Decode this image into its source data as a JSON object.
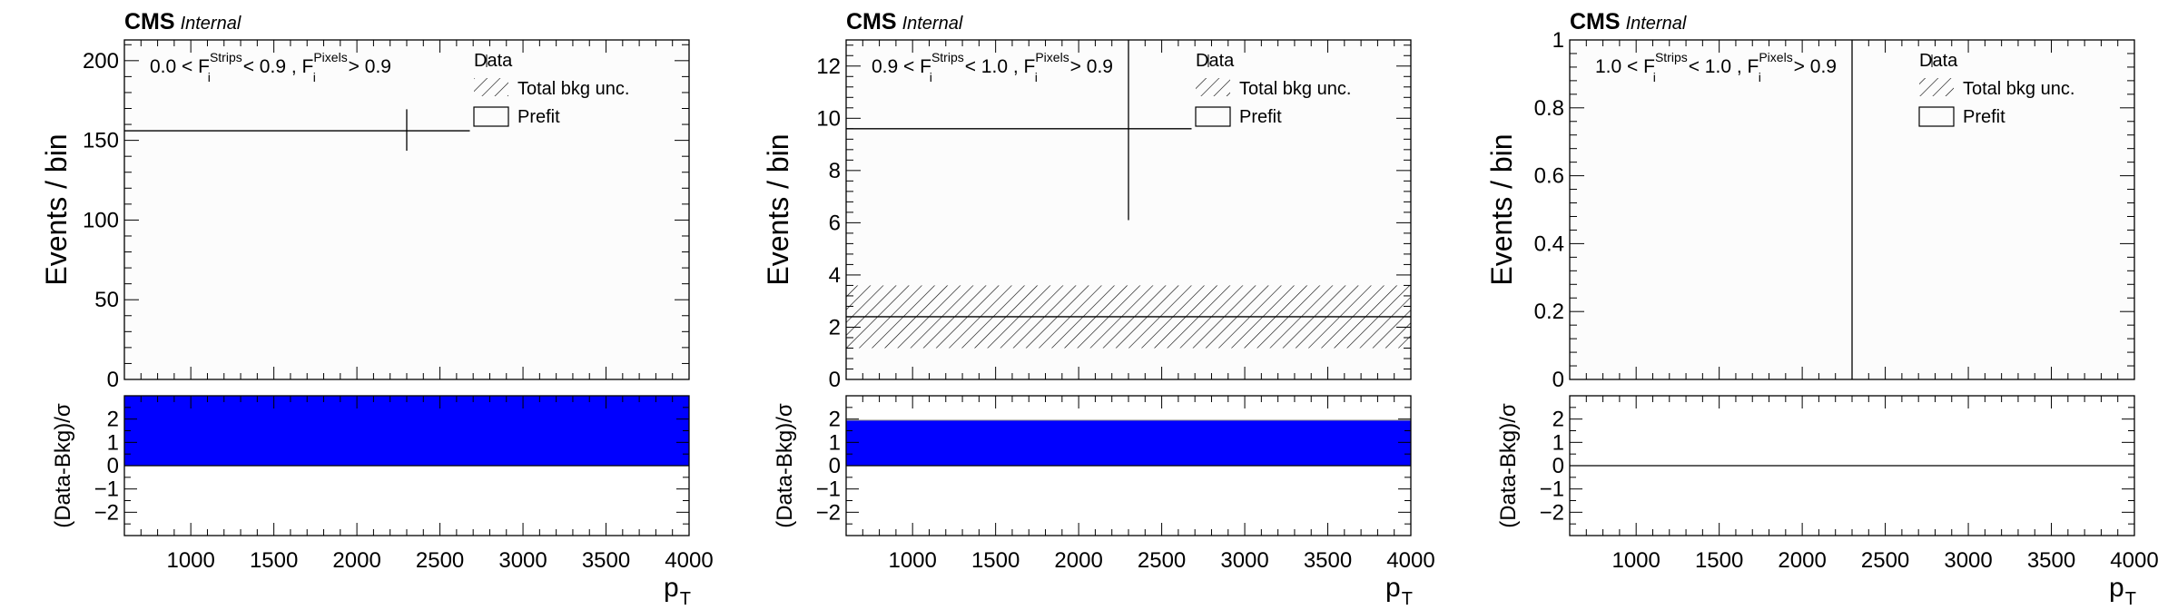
{
  "chart_data": [
    {
      "type": "histogram",
      "experiment": "CMS",
      "experiment_status": "Internal",
      "category_label": {
        "prefix": "0.0 < F",
        "sup1": "Strips",
        "mid": " < 0.9 , F",
        "sup2": "Pixels",
        "suffix": " > 0.9",
        "sub": "i"
      },
      "ylabel": "Events / bin",
      "ratio_ylabel": "(Data-Bkg)/σ",
      "xlabel": "p",
      "xlabel_sub": "T",
      "xlim": [
        600,
        4000
      ],
      "ylim": [
        0,
        213
      ],
      "y_ticks": [
        0,
        50,
        100,
        150,
        200
      ],
      "y_tick_labels": [
        "0",
        "50",
        "100",
        "150",
        "200"
      ],
      "x_ticks": [
        1000,
        1500,
        2000,
        2500,
        3000,
        3500,
        4000
      ],
      "x_tick_labels": [
        "1000",
        "1500",
        "2000",
        "2500",
        "3000",
        "3500",
        "4000"
      ],
      "ratio_ylim": [
        -3,
        3
      ],
      "ratio_ticks": [
        -2,
        -1,
        0,
        1,
        2
      ],
      "ratio_tick_labels": [
        "−2",
        "−1",
        "0",
        "1",
        "2"
      ],
      "legend": {
        "data": "Data",
        "unc": "Total bkg unc.",
        "prefit": "Prefit"
      },
      "data_points": [
        {
          "x": 2300,
          "xlow": 600,
          "xhigh": 2680,
          "y": 156,
          "yerr_low": 12.5,
          "yerr_high": 13.5
        }
      ],
      "background": {
        "value": 0,
        "unc_low": 0,
        "unc_high": 0
      },
      "pull": {
        "value": 3.0,
        "clipped": true
      }
    },
    {
      "type": "histogram",
      "experiment": "CMS",
      "experiment_status": "Internal",
      "category_label": {
        "prefix": "0.9 < F",
        "sup1": "Strips",
        "mid": " < 1.0 , F",
        "sup2": "Pixels",
        "suffix": " > 0.9",
        "sub": "i"
      },
      "ylabel": "Events / bin",
      "ratio_ylabel": "(Data-Bkg)/σ",
      "xlabel": "p",
      "xlabel_sub": "T",
      "xlim": [
        600,
        4000
      ],
      "ylim": [
        0,
        13
      ],
      "y_ticks": [
        0,
        2,
        4,
        6,
        8,
        10,
        12
      ],
      "y_tick_labels": [
        "0",
        "2",
        "4",
        "6",
        "8",
        "10",
        "12"
      ],
      "x_ticks": [
        1000,
        1500,
        2000,
        2500,
        3000,
        3500,
        4000
      ],
      "x_tick_labels": [
        "1000",
        "1500",
        "2000",
        "2500",
        "3000",
        "3500",
        "4000"
      ],
      "ratio_ylim": [
        -3,
        3
      ],
      "ratio_ticks": [
        -2,
        -1,
        0,
        1,
        2
      ],
      "ratio_tick_labels": [
        "−2",
        "−1",
        "0",
        "1",
        "2"
      ],
      "legend": {
        "data": "Data",
        "unc": "Total bkg unc.",
        "prefit": "Prefit"
      },
      "data_points": [
        {
          "x": 2300,
          "xlow": 600,
          "xhigh": 2680,
          "y": 9.6,
          "yerr_low": 3.5,
          "yerr_high": 4.0
        }
      ],
      "background": {
        "value": 2.4,
        "unc_low": 1.2,
        "unc_high": 3.6
      },
      "pull": {
        "value": 1.95,
        "clipped": false
      }
    },
    {
      "type": "histogram",
      "experiment": "CMS",
      "experiment_status": "Internal",
      "category_label": {
        "prefix": "1.0 < F",
        "sup1": "Strips",
        "mid": " < 1.0 , F",
        "sup2": "Pixels",
        "suffix": " > 0.9",
        "sub": "i"
      },
      "ylabel": "Events / bin",
      "ratio_ylabel": "(Data-Bkg)/σ",
      "xlabel": "p",
      "xlabel_sub": "T",
      "xlim": [
        600,
        4000
      ],
      "ylim": [
        0,
        1
      ],
      "y_ticks": [
        0,
        0.2,
        0.4,
        0.6,
        0.8,
        1
      ],
      "y_tick_labels": [
        "0",
        "0.2",
        "0.4",
        "0.6",
        "0.8",
        "1"
      ],
      "x_ticks": [
        1000,
        1500,
        2000,
        2500,
        3000,
        3500,
        4000
      ],
      "x_tick_labels": [
        "1000",
        "1500",
        "2000",
        "2500",
        "3000",
        "3500",
        "4000"
      ],
      "ratio_ylim": [
        -3,
        3
      ],
      "ratio_ticks": [
        -2,
        -1,
        0,
        1,
        2
      ],
      "ratio_tick_labels": [
        "−2",
        "−1",
        "0",
        "1",
        "2"
      ],
      "legend": {
        "data": "Data",
        "unc": "Total bkg unc.",
        "prefit": "Prefit"
      },
      "data_points": [
        {
          "x": 2300,
          "xlow": 2300,
          "xhigh": 2300,
          "y": 0,
          "yerr_low": 0,
          "yerr_high": 1.0
        }
      ],
      "background": {
        "value": 0,
        "unc_low": 0,
        "unc_high": 0
      },
      "pull": {
        "value": 0,
        "clipped": false
      }
    }
  ],
  "colors": {
    "pull_fill": "#0000ff",
    "frame": "#000000",
    "plot_bg": "#fcfcfc"
  }
}
